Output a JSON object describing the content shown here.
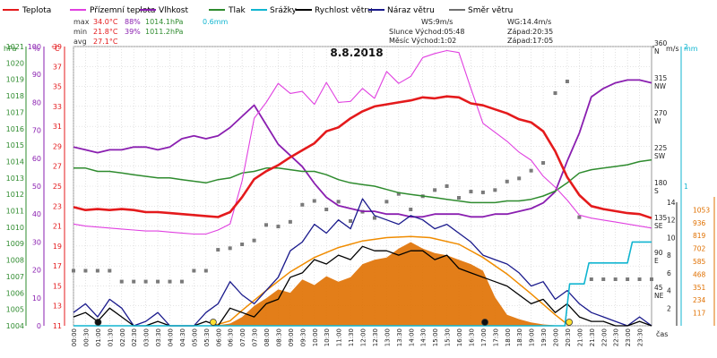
{
  "chart_data": {
    "type": "line",
    "title": "8.8.2018",
    "xlabel": "čas",
    "legend": [
      {
        "name": "Teplota",
        "color": "#e41a1c"
      },
      {
        "name": "Přízemní teplota",
        "color": "#e040e0"
      },
      {
        "name": "Vlhkost",
        "color": "#8a1fb0"
      },
      {
        "name": "Tlak",
        "color": "#2e8b2e"
      },
      {
        "name": "Srážky",
        "color": "#11b5d0"
      },
      {
        "name": "Rychlost větru",
        "color": "#000000"
      },
      {
        "name": "Náraz větru",
        "color": "#1a1a8c"
      },
      {
        "name": "Směr větru",
        "color": "#707070"
      }
    ],
    "stats": [
      {
        "label": "max",
        "temp": "34.0°C",
        "hum": "88%",
        "press": "1014.1hPa",
        "rain": "0.6mm"
      },
      {
        "label": "min",
        "temp": "21.8°C",
        "hum": "39%",
        "press": "1011.2hPa"
      },
      {
        "label": "avg",
        "temp": "27.1°C"
      }
    ],
    "info": {
      "ws": "WS:9m/s",
      "wg": "WG:14.4m/s",
      "sun_rise": "Slunce Východ:05:48",
      "sun_set": "Západ:20:35",
      "moon_rise": "Měsíc Východ:1:02",
      "moon_set": "Západ:17:05"
    },
    "axes": {
      "pressure": {
        "unit": "hPa",
        "color": "#2e8b2e",
        "ticks": [
          "1021",
          "1020",
          "1019",
          "1018",
          "1017",
          "1016",
          "1015",
          "1014",
          "1013",
          "1012",
          "1011",
          "1010",
          "1009",
          "1008",
          "1007",
          "1006",
          "1005",
          "1004"
        ],
        "min": 1004,
        "max": 1021
      },
      "humidity": {
        "unit": "%",
        "color": "#8a1fb0",
        "ticks": [
          "100",
          "90",
          "80",
          "70",
          "60",
          "50",
          "40",
          "30",
          "20",
          "10",
          "0"
        ],
        "min": 0,
        "max": 100
      },
      "temperature": {
        "unit": "°C",
        "color": "#e41a1c",
        "ticks": [
          "39",
          "37",
          "35",
          "33",
          "31",
          "29",
          "27",
          "25",
          "23",
          "21",
          "19",
          "17",
          "15",
          "13",
          "11"
        ],
        "min": 11,
        "max": 39
      },
      "wind_direction": {
        "unit": "°",
        "ticks": [
          {
            "v": "360",
            "d": "N"
          },
          {
            "v": "315",
            "d": "NW"
          },
          {
            "v": "270",
            "d": "W"
          },
          {
            "v": "225",
            "d": "SW"
          },
          {
            "v": "180",
            "d": "S"
          },
          {
            "v": "135",
            "d": "SE"
          },
          {
            "v": "90",
            "d": "E"
          },
          {
            "v": "45",
            "d": "NE"
          }
        ],
        "min": 0,
        "max": 360
      },
      "wind_speed": {
        "unit": "m/s",
        "ticks": [
          "14",
          "12",
          "10",
          "8",
          "6",
          "4",
          "2"
        ],
        "min": 0,
        "max": 14
      },
      "rain": {
        "unit": "mm",
        "color": "#11b5d0",
        "ticks": [
          "2",
          "1"
        ],
        "min": 0,
        "max": 2
      },
      "solar": {
        "color": "#e07000",
        "ticks": [
          "1053",
          "936",
          "819",
          "702",
          "585",
          "468",
          "351",
          "234",
          "117"
        ],
        "min": 0,
        "max": 1170
      }
    },
    "x_ticks": [
      "00:00",
      "00:30",
      "01:00",
      "01:30",
      "02:00",
      "02:30",
      "03:00",
      "03:30",
      "04:00",
      "04:30",
      "05:00",
      "05:30",
      "06:00",
      "06:30",
      "07:00",
      "07:30",
      "08:00",
      "08:30",
      "09:00",
      "09:30",
      "10:00",
      "10:30",
      "11:00",
      "11:30",
      "12:00",
      "12:30",
      "13:00",
      "13:30",
      "14:00",
      "14:30",
      "15:00",
      "15:30",
      "16:00",
      "16:30",
      "17:00",
      "17:30",
      "18:00",
      "18:30",
      "19:00",
      "19:30",
      "20:00",
      "20:30",
      "21:00",
      "21:30",
      "22:00",
      "22:30",
      "23:00",
      "23:30"
    ],
    "x_range": [
      0,
      24
    ],
    "series": [
      {
        "name": "Teplota",
        "x": [
          0,
          0.5,
          1,
          1.5,
          2,
          2.5,
          3,
          3.5,
          4,
          4.5,
          5,
          5.5,
          6,
          6.5,
          7,
          7.5,
          8,
          8.5,
          9,
          9.5,
          10,
          10.5,
          11,
          11.5,
          12,
          12.5,
          13,
          13.5,
          14,
          14.5,
          15,
          15.5,
          16,
          16.5,
          17,
          17.5,
          18,
          18.5,
          19,
          19.5,
          20,
          20.5,
          21,
          21.5,
          22,
          22.5,
          23,
          23.5,
          24
        ],
        "y": [
          22.9,
          22.6,
          22.7,
          22.6,
          22.7,
          22.6,
          22.4,
          22.4,
          22.3,
          22.2,
          22.1,
          22.0,
          21.9,
          22.4,
          23.9,
          25.7,
          26.5,
          27.1,
          27.9,
          28.6,
          29.3,
          30.5,
          30.9,
          31.8,
          32.5,
          33.0,
          33.2,
          33.4,
          33.6,
          33.9,
          33.8,
          34.0,
          33.9,
          33.3,
          33.1,
          32.7,
          32.3,
          31.7,
          31.4,
          30.5,
          28.5,
          25.9,
          24.1,
          23.0,
          22.7,
          22.5,
          22.3,
          22.2,
          21.8
        ]
      },
      {
        "name": "Přízemní teplota",
        "x": [
          0,
          0.5,
          1,
          1.5,
          2,
          2.5,
          3,
          3.5,
          4,
          4.5,
          5,
          5.5,
          6,
          6.5,
          7,
          7.5,
          8,
          8.5,
          9,
          9.5,
          10,
          10.5,
          11,
          11.5,
          12,
          12.5,
          13,
          13.5,
          14,
          14.5,
          15,
          15.5,
          16,
          16.5,
          17,
          17.5,
          18,
          18.5,
          19,
          19.5,
          20,
          20.5,
          21,
          21.5,
          22,
          22.5,
          23,
          23.5,
          24
        ],
        "y": [
          21.2,
          21.0,
          20.9,
          20.8,
          20.7,
          20.6,
          20.5,
          20.5,
          20.4,
          20.3,
          20.2,
          20.2,
          20.6,
          21.2,
          25.5,
          31.8,
          33.4,
          35.3,
          34.3,
          34.5,
          33.2,
          35.4,
          33.4,
          33.5,
          34.8,
          33.8,
          36.5,
          35.3,
          36.0,
          37.9,
          38.3,
          38.6,
          38.4,
          34.8,
          31.3,
          30.4,
          29.5,
          28.4,
          27.6,
          26.0,
          24.9,
          23.6,
          22.1,
          21.8,
          21.6,
          21.4,
          21.2,
          21.0,
          20.8
        ]
      },
      {
        "name": "Vlhkost",
        "x": [
          0,
          0.5,
          1,
          1.5,
          2,
          2.5,
          3,
          3.5,
          4,
          4.5,
          5,
          5.5,
          6,
          6.5,
          7,
          7.5,
          8,
          8.5,
          9,
          9.5,
          10,
          10.5,
          11,
          11.5,
          12,
          12.5,
          13,
          13.5,
          14,
          14.5,
          15,
          15.5,
          16,
          16.5,
          17,
          17.5,
          18,
          18.5,
          19,
          19.5,
          20,
          20.5,
          21,
          21.5,
          22,
          22.5,
          23,
          23.5,
          24
        ],
        "y": [
          64,
          63,
          62,
          63,
          63,
          64,
          64,
          63,
          64,
          67,
          68,
          67,
          68,
          71,
          75,
          79,
          72,
          65,
          61,
          57,
          51,
          46,
          43,
          42,
          41,
          41,
          40,
          40,
          39,
          39,
          40,
          40,
          40,
          39,
          39,
          40,
          40,
          41,
          42,
          44,
          48,
          59,
          69,
          82,
          85,
          87,
          88,
          88,
          87
        ]
      },
      {
        "name": "Tlak",
        "x": [
          0,
          0.5,
          1,
          1.5,
          2,
          2.5,
          3,
          3.5,
          4,
          4.5,
          5,
          5.5,
          6,
          6.5,
          7,
          7.5,
          8,
          8.5,
          9,
          9.5,
          10,
          10.5,
          11,
          11.5,
          12,
          12.5,
          13,
          13.5,
          14,
          14.5,
          15,
          15.5,
          16,
          16.5,
          17,
          17.5,
          18,
          18.5,
          19,
          19.5,
          20,
          20.5,
          21,
          21.5,
          22,
          22.5,
          23,
          23.5,
          24
        ],
        "y": [
          1013.6,
          1013.6,
          1013.4,
          1013.4,
          1013.3,
          1013.2,
          1013.1,
          1013.0,
          1013.0,
          1012.9,
          1012.8,
          1012.7,
          1012.9,
          1013.0,
          1013.3,
          1013.4,
          1013.6,
          1013.6,
          1013.5,
          1013.4,
          1013.4,
          1013.2,
          1012.9,
          1012.7,
          1012.6,
          1012.5,
          1012.3,
          1012.1,
          1012.0,
          1011.9,
          1011.8,
          1011.7,
          1011.6,
          1011.5,
          1011.5,
          1011.5,
          1011.6,
          1011.6,
          1011.7,
          1011.9,
          1012.2,
          1012.7,
          1013.3,
          1013.5,
          1013.6,
          1013.7,
          1013.8,
          1014.0,
          1014.1
        ]
      },
      {
        "name": "Rychlost větru",
        "x": [
          0,
          0.5,
          1,
          1.5,
          2,
          2.5,
          3,
          3.5,
          4,
          4.5,
          5,
          5.5,
          6,
          6.5,
          7,
          7.5,
          8,
          8.5,
          9,
          9.5,
          10,
          10.5,
          11,
          11.5,
          12,
          12.5,
          13,
          13.5,
          14,
          14.5,
          15,
          15.5,
          16,
          16.5,
          17,
          17.5,
          18,
          18.5,
          19,
          19.5,
          20,
          20.5,
          21,
          21.5,
          22,
          22.5,
          23,
          23.5,
          24
        ],
        "y": [
          1.0,
          1.5,
          0.5,
          2.0,
          1.0,
          0.0,
          0.0,
          0.5,
          0.0,
          0.0,
          0.0,
          0.5,
          0.0,
          2.0,
          1.5,
          1.0,
          2.5,
          3.0,
          5.5,
          6.0,
          7.5,
          7.0,
          8.0,
          7.5,
          9.0,
          8.5,
          8.5,
          8.0,
          8.5,
          8.5,
          7.5,
          8.0,
          6.5,
          6.0,
          5.5,
          5.0,
          4.5,
          3.5,
          2.5,
          3.0,
          1.5,
          2.5,
          1.0,
          0.5,
          0.5,
          0.0,
          0.0,
          0.5,
          0.0
        ]
      },
      {
        "name": "Náraz větru",
        "x": [
          0,
          0.5,
          1,
          1.5,
          2,
          2.5,
          3,
          3.5,
          4,
          4.5,
          5,
          5.5,
          6,
          6.5,
          7,
          7.5,
          8,
          8.5,
          9,
          9.5,
          10,
          10.5,
          11,
          11.5,
          12,
          12.5,
          13,
          13.5,
          14,
          14.5,
          15,
          15.5,
          16,
          16.5,
          17,
          17.5,
          18,
          18.5,
          19,
          19.5,
          20,
          20.5,
          21,
          21.5,
          22,
          22.5,
          23,
          23.5,
          24
        ],
        "y": [
          1.5,
          2.5,
          1.0,
          3.0,
          2.0,
          0.0,
          0.5,
          1.5,
          0.0,
          0.0,
          0.0,
          1.5,
          2.5,
          5.0,
          3.5,
          2.5,
          4.0,
          5.5,
          8.5,
          9.5,
          11.5,
          10.5,
          12.0,
          11.0,
          14.4,
          12.5,
          12.0,
          11.5,
          12.5,
          12.0,
          11.0,
          11.5,
          10.5,
          9.5,
          8.0,
          7.5,
          7.0,
          6.0,
          4.5,
          5.0,
          3.0,
          4.0,
          2.5,
          1.5,
          1.0,
          0.5,
          0.0,
          1.0,
          0.0
        ]
      },
      {
        "name": "Směr větru",
        "x": [
          0,
          0.5,
          1,
          1.5,
          2,
          2.5,
          3,
          3.5,
          4,
          4.5,
          5,
          5.5,
          6,
          6.5,
          7,
          7.5,
          8,
          8.5,
          9,
          9.5,
          10,
          10.5,
          11,
          11.5,
          12,
          12.5,
          13,
          13.5,
          14,
          14.5,
          15,
          15.5,
          16,
          16.5,
          17,
          17.5,
          18,
          18.5,
          19,
          19.5,
          20,
          20.5,
          21,
          21.5,
          22,
          22.5,
          23,
          23.5,
          24
        ],
        "y": [
          71,
          71,
          71,
          71,
          57,
          57,
          57,
          57,
          57,
          57,
          71,
          71,
          98,
          100,
          105,
          110,
          130,
          128,
          134,
          156,
          161,
          150,
          160,
          135,
          147,
          139,
          160,
          170,
          150,
          167,
          175,
          180,
          165,
          173,
          172,
          175,
          186,
          190,
          200,
          210,
          300,
          315,
          140,
          60,
          60,
          60,
          60,
          60,
          60
        ]
      },
      {
        "name": "Srážky",
        "x": [
          0,
          20.4,
          20.6,
          21.2,
          21.4,
          22,
          22.5,
          23,
          23.2,
          24
        ],
        "y": [
          0,
          0,
          0.3,
          0.3,
          0.45,
          0.45,
          0.45,
          0.45,
          0.6,
          0.6
        ]
      },
      {
        "name": "Solar",
        "x": [
          0,
          5.8,
          6.5,
          7,
          7.5,
          8,
          8.5,
          9,
          9.5,
          10,
          10.5,
          11,
          11.5,
          12,
          12.5,
          13,
          13.5,
          14,
          14.5,
          15,
          15.5,
          16,
          16.5,
          17,
          17.5,
          18,
          18.5,
          19,
          19.5,
          20,
          20.5,
          24
        ],
        "y": [
          0,
          0,
          20,
          80,
          180,
          250,
          330,
          300,
          420,
          370,
          450,
          400,
          440,
          560,
          600,
          620,
          700,
          760,
          700,
          660,
          640,
          600,
          560,
          500,
          260,
          100,
          60,
          30,
          12,
          4,
          0,
          0
        ]
      },
      {
        "name": "Solar max",
        "x": [
          5.8,
          6.5,
          7,
          8,
          9,
          10,
          11,
          12,
          13,
          14,
          14.8,
          16,
          17,
          18,
          19,
          20,
          20.58
        ],
        "y": [
          0,
          45,
          140,
          320,
          490,
          620,
          710,
          770,
          800,
          810,
          800,
          740,
          620,
          470,
          290,
          100,
          0
        ]
      }
    ],
    "markers": [
      {
        "name": "Měsíc Východ",
        "time": 1.02
      },
      {
        "name": "Slunce Východ",
        "time": 5.8
      },
      {
        "name": "Měsíc Západ",
        "time": 17.08
      },
      {
        "name": "Slunce Západ",
        "time": 20.58
      }
    ]
  }
}
